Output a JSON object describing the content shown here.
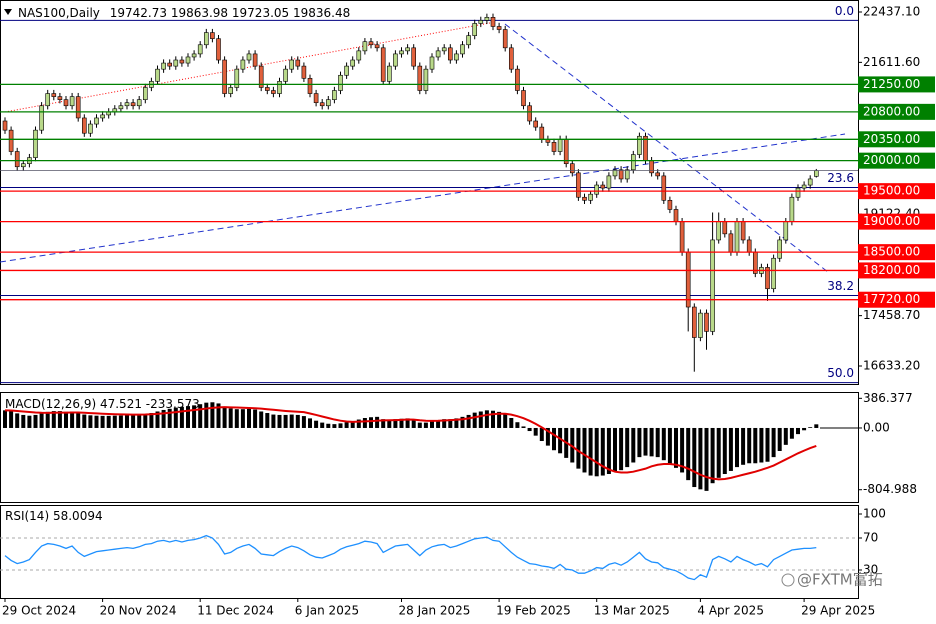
{
  "chart_data": {
    "type": "candlestick",
    "symbol": "NAS100,Daily",
    "categories": [
      "29 Oct 2024",
      null,
      null,
      null,
      null,
      null,
      null,
      null,
      null,
      null,
      null,
      null,
      null,
      null,
      null,
      null,
      "20 Nov 2024",
      null,
      null,
      null,
      null,
      null,
      null,
      null,
      null,
      null,
      null,
      null,
      null,
      null,
      null,
      null,
      "11 Dec 2024",
      null,
      null,
      null,
      null,
      null,
      null,
      null,
      null,
      null,
      null,
      null,
      null,
      null,
      null,
      null,
      "6 Jan 2025",
      null,
      null,
      null,
      null,
      null,
      null,
      null,
      null,
      null,
      null,
      null,
      null,
      null,
      null,
      null,
      null,
      "28 Jan 2025",
      null,
      null,
      null,
      null,
      null,
      null,
      null,
      null,
      null,
      null,
      null,
      null,
      null,
      null,
      null,
      "19 Feb 2025",
      null,
      null,
      null,
      null,
      null,
      null,
      null,
      null,
      null,
      null,
      null,
      null,
      null,
      null,
      null,
      "13 Mar 2025",
      null,
      null,
      null,
      null,
      null,
      null,
      null,
      null,
      null,
      null,
      null,
      null,
      null,
      null,
      null,
      null,
      "4 Apr 2025",
      null,
      null,
      null,
      null,
      null,
      null,
      null,
      null,
      null,
      null,
      null,
      null,
      null,
      null,
      null,
      null,
      "29 Apr 2025",
      null,
      null
    ],
    "open": [
      20650,
      20500,
      20150,
      19900,
      19950,
      20050,
      20500,
      20900,
      21100,
      21050,
      21000,
      20900,
      21050,
      20700,
      20450,
      20600,
      20700,
      20750,
      20800,
      20850,
      20900,
      20950,
      20900,
      21000,
      21200,
      21300,
      21500,
      21600,
      21550,
      21650,
      21600,
      21700,
      21750,
      21900,
      22100,
      22000,
      21650,
      21100,
      21200,
      21500,
      21650,
      21750,
      21550,
      21200,
      21150,
      21100,
      21300,
      21500,
      21650,
      21550,
      21350,
      21100,
      20950,
      20900,
      21000,
      21150,
      21400,
      21550,
      21650,
      21800,
      21950,
      21900,
      21850,
      21300,
      21550,
      21750,
      21800,
      21850,
      21550,
      21150,
      21500,
      21700,
      21800,
      21850,
      21650,
      21750,
      21900,
      22050,
      22250,
      22300,
      22350,
      22200,
      22150,
      21850,
      21500,
      21150,
      20900,
      20650,
      20550,
      20350,
      20300,
      20150,
      20350,
      19950,
      19800,
      19400,
      19350,
      19450,
      19600,
      19550,
      19750,
      19850,
      19700,
      19850,
      20100,
      20400,
      20000,
      19800,
      19750,
      19350,
      19200,
      19000,
      18500,
      17600,
      17100,
      17500,
      17200,
      18700,
      19000,
      18800,
      18500,
      19000,
      18700,
      18500,
      18150,
      18250,
      17900,
      18400,
      18700,
      19000,
      19400,
      19550,
      19600,
      19742.73
    ],
    "high": [
      20710,
      20560,
      20210,
      20010,
      20110,
      20560,
      20960,
      21160,
      21160,
      21110,
      21060,
      21110,
      21110,
      20760,
      20660,
      20760,
      20810,
      20860,
      20910,
      20960,
      21010,
      21010,
      21060,
      21260,
      21360,
      21560,
      21660,
      21660,
      21710,
      21710,
      21760,
      21810,
      21960,
      22160,
      22160,
      22060,
      21710,
      21260,
      21560,
      21710,
      21810,
      21810,
      21610,
      21260,
      21210,
      21360,
      21560,
      21710,
      21710,
      21610,
      21410,
      21160,
      21010,
      21060,
      21210,
      21460,
      21610,
      21710,
      21860,
      22010,
      22010,
      21960,
      21910,
      21610,
      21810,
      21860,
      21910,
      21910,
      21610,
      21560,
      21760,
      21860,
      21910,
      21910,
      21810,
      21960,
      22110,
      22310,
      22360,
      22410,
      22410,
      22260,
      22210,
      21910,
      21560,
      21210,
      20960,
      20710,
      20610,
      20410,
      20360,
      20410,
      20410,
      20010,
      19860,
      19460,
      19510,
      19660,
      19660,
      19810,
      19910,
      19910,
      19910,
      20160,
      20460,
      20460,
      20060,
      19860,
      19810,
      19410,
      19260,
      19060,
      18560,
      17660,
      17560,
      17560,
      19150,
      19150,
      19060,
      18860,
      19060,
      19060,
      18760,
      18560,
      18310,
      18310,
      18460,
      18760,
      19060,
      19460,
      19610,
      19660,
      19760,
      19863.98
    ],
    "low": [
      20440,
      20090,
      19840,
      19840,
      19890,
      19990,
      20440,
      20840,
      20990,
      20940,
      20840,
      20840,
      20640,
      20390,
      20390,
      20540,
      20640,
      20690,
      20740,
      20790,
      20840,
      20840,
      20840,
      20940,
      21140,
      21240,
      21440,
      21490,
      21490,
      21540,
      21540,
      21640,
      21690,
      21840,
      21940,
      21590,
      21040,
      21040,
      21140,
      21440,
      21590,
      21490,
      21140,
      21090,
      21040,
      21040,
      21240,
      21440,
      21490,
      21290,
      21040,
      20890,
      20840,
      20840,
      20940,
      21090,
      21340,
      21490,
      21590,
      21740,
      21840,
      21790,
      21240,
      21240,
      21490,
      21690,
      21740,
      21490,
      21090,
      21090,
      21440,
      21640,
      21740,
      21590,
      21590,
      21690,
      21840,
      21990,
      22190,
      22240,
      22140,
      22090,
      21790,
      21440,
      21090,
      20840,
      20590,
      20490,
      20290,
      20240,
      20090,
      20090,
      19890,
      19740,
      19340,
      19290,
      19290,
      19390,
      19490,
      19490,
      19690,
      19640,
      19640,
      19790,
      20040,
      19940,
      19740,
      19690,
      19290,
      19140,
      18940,
      18440,
      17200,
      16540,
      17040,
      16900,
      17140,
      18640,
      18740,
      18440,
      18440,
      18640,
      18440,
      18090,
      18090,
      17700,
      17840,
      18340,
      18640,
      18940,
      19340,
      19490,
      19540,
      19723.05
    ],
    "close": [
      20500,
      20150,
      19900,
      19950,
      20050,
      20500,
      20900,
      21100,
      21050,
      21000,
      20900,
      21050,
      20700,
      20450,
      20600,
      20700,
      20750,
      20800,
      20850,
      20900,
      20950,
      20900,
      21000,
      21200,
      21300,
      21500,
      21600,
      21550,
      21650,
      21600,
      21700,
      21750,
      21900,
      22100,
      22000,
      21650,
      21100,
      21200,
      21500,
      21650,
      21750,
      21550,
      21200,
      21150,
      21100,
      21300,
      21500,
      21650,
      21550,
      21350,
      21100,
      20950,
      20900,
      21000,
      21150,
      21400,
      21550,
      21650,
      21800,
      21950,
      21900,
      21850,
      21300,
      21550,
      21750,
      21800,
      21850,
      21550,
      21150,
      21500,
      21700,
      21800,
      21850,
      21650,
      21750,
      21900,
      22050,
      22250,
      22300,
      22350,
      22200,
      22150,
      21850,
      21500,
      21150,
      20900,
      20650,
      20550,
      20350,
      20300,
      20150,
      20350,
      19950,
      19800,
      19400,
      19350,
      19450,
      19600,
      19550,
      19750,
      19850,
      19700,
      19850,
      20100,
      20400,
      20000,
      19800,
      19750,
      19350,
      19200,
      19000,
      18500,
      17600,
      17100,
      17500,
      17200,
      18700,
      19000,
      18800,
      18500,
      19000,
      18700,
      18500,
      18150,
      18250,
      17900,
      18400,
      18700,
      19000,
      19400,
      19550,
      19600,
      19700,
      19836.48
    ],
    "up_color": "#b9d98a",
    "down_color": "#e0603c",
    "ylim": [
      16338,
      22634
    ],
    "yticks": [
      {
        "value": 22437.1,
        "label": "22437.10"
      },
      {
        "value": 21611.6,
        "label": "21611.60"
      },
      {
        "value": 19122.4,
        "label": "19122.40"
      },
      {
        "value": 17458.7,
        "label": "17458.70"
      },
      {
        "value": 16633.2,
        "label": "16633.20"
      }
    ],
    "levels": [
      {
        "value": 21250,
        "label": "21250.00",
        "color": "#008000"
      },
      {
        "value": 20800,
        "label": "20800.00",
        "color": "#008000"
      },
      {
        "value": 20350,
        "label": "20350.00",
        "color": "#008000"
      },
      {
        "value": 20000,
        "label": "20000.00",
        "color": "#008000"
      },
      {
        "value": 19500,
        "label": "19500.00",
        "color": "#ff0000"
      },
      {
        "value": 19000,
        "label": "19000.00",
        "color": "#ff0000"
      },
      {
        "value": 18500,
        "label": "18500.00",
        "color": "#ff0000"
      },
      {
        "value": 18200,
        "label": "18200.00",
        "color": "#ff0000"
      },
      {
        "value": 17720,
        "label": "17720.00",
        "color": "#ff0000"
      }
    ],
    "fib": [
      {
        "value": 22300,
        "label": "0.0"
      },
      {
        "value": 19560,
        "label": "23.6"
      },
      {
        "value": 17790,
        "label": "38.2"
      },
      {
        "value": 16360,
        "label": "50.0"
      }
    ],
    "macd": {
      "label": "MACD(12,26,9)",
      "histogram": [
        230,
        220,
        190,
        170,
        160,
        170,
        190,
        210,
        220,
        220,
        210,
        215,
        200,
        175,
        165,
        160,
        158,
        158,
        160,
        162,
        165,
        165,
        170,
        180,
        195,
        215,
        235,
        250,
        265,
        275,
        285,
        295,
        310,
        330,
        335,
        320,
        280,
        255,
        245,
        245,
        250,
        240,
        215,
        195,
        175,
        170,
        170,
        175,
        170,
        155,
        125,
        95,
        70,
        55,
        50,
        60,
        75,
        90,
        110,
        130,
        140,
        145,
        115,
        110,
        115,
        120,
        125,
        105,
        70,
        70,
        85,
        100,
        115,
        115,
        125,
        145,
        170,
        200,
        215,
        230,
        225,
        210,
        180,
        130,
        75,
        20,
        -40,
        -100,
        -170,
        -230,
        -290,
        -330,
        -390,
        -450,
        -530,
        -580,
        -620,
        -630,
        -620,
        -600,
        -570,
        -550,
        -510,
        -450,
        -380,
        -360,
        -370,
        -380,
        -420,
        -470,
        -520,
        -580,
        -680,
        -770,
        -800,
        -820,
        -720,
        -650,
        -600,
        -560,
        -510,
        -480,
        -460,
        -460,
        -450,
        -440,
        -380,
        -300,
        -220,
        -140,
        -80,
        -30,
        10,
        47.521
      ],
      "signal": [
        230,
        228,
        222,
        215,
        208,
        202,
        198,
        197,
        198,
        200,
        200,
        201,
        201,
        198,
        194,
        190,
        186,
        182,
        179,
        177,
        175,
        174,
        174,
        175,
        179,
        184,
        190,
        198,
        207,
        216,
        225,
        234,
        243,
        253,
        262,
        269,
        272,
        269,
        267,
        264,
        261,
        257,
        252,
        244,
        237,
        229,
        222,
        216,
        211,
        206,
        189,
        170,
        150,
        130,
        110,
        95,
        85,
        80,
        82,
        86,
        90,
        95,
        99,
        101,
        103,
        106,
        110,
        109,
        101,
        95,
        93,
        94,
        98,
        102,
        107,
        114,
        125,
        140,
        155,
        170,
        180,
        186,
        185,
        174,
        154,
        127,
        93,
        53,
        8,
        -40,
        -90,
        -140,
        -190,
        -240,
        -300,
        -350,
        -400,
        -450,
        -500,
        -540,
        -570,
        -580,
        -580,
        -570,
        -550,
        -530,
        -500,
        -480,
        -470,
        -470,
        -480,
        -500,
        -530,
        -570,
        -610,
        -640,
        -660,
        -670,
        -665,
        -650,
        -630,
        -610,
        -590,
        -570,
        -545,
        -520,
        -490,
        -450,
        -410,
        -370,
        -330,
        -295,
        -262,
        -233.573
      ],
      "histogram_color": "#000000",
      "signal_color": "#e00000",
      "ylim": [
        -965,
        469
      ],
      "yticks": [
        386.377,
        {
          "value": 0,
          "label": "0.00"
        },
        -804.988
      ]
    },
    "rsi": {
      "label": "RSI(14)",
      "values": [
        48,
        42,
        38,
        40,
        43,
        52,
        60,
        63,
        62,
        60,
        57,
        60,
        52,
        47,
        50,
        53,
        54,
        55,
        56,
        57,
        58,
        57,
        59,
        62,
        63,
        66,
        67,
        65,
        67,
        65,
        67,
        68,
        70,
        73,
        70,
        62,
        50,
        52,
        57,
        60,
        62,
        57,
        50,
        49,
        48,
        53,
        57,
        60,
        58,
        54,
        49,
        46,
        45,
        48,
        51,
        56,
        59,
        61,
        63,
        66,
        65,
        63,
        52,
        56,
        60,
        61,
        62,
        55,
        48,
        55,
        59,
        61,
        62,
        58,
        60,
        63,
        66,
        69,
        70,
        71,
        67,
        66,
        59,
        52,
        46,
        42,
        38,
        37,
        35,
        34,
        32,
        37,
        31,
        30,
        26,
        26,
        29,
        33,
        32,
        37,
        39,
        36,
        40,
        46,
        52,
        44,
        40,
        39,
        33,
        31,
        29,
        25,
        20,
        18,
        24,
        21,
        43,
        47,
        44,
        40,
        47,
        43,
        40,
        36,
        38,
        34,
        43,
        47,
        51,
        55,
        56,
        57,
        57,
        58.0094
      ],
      "color": "#1e90ff",
      "ylim": [
        -5,
        110
      ],
      "yticks": [
        100,
        70,
        30
      ],
      "levels": [
        70,
        30
      ]
    },
    "watermark": "@FXTM富拓"
  }
}
